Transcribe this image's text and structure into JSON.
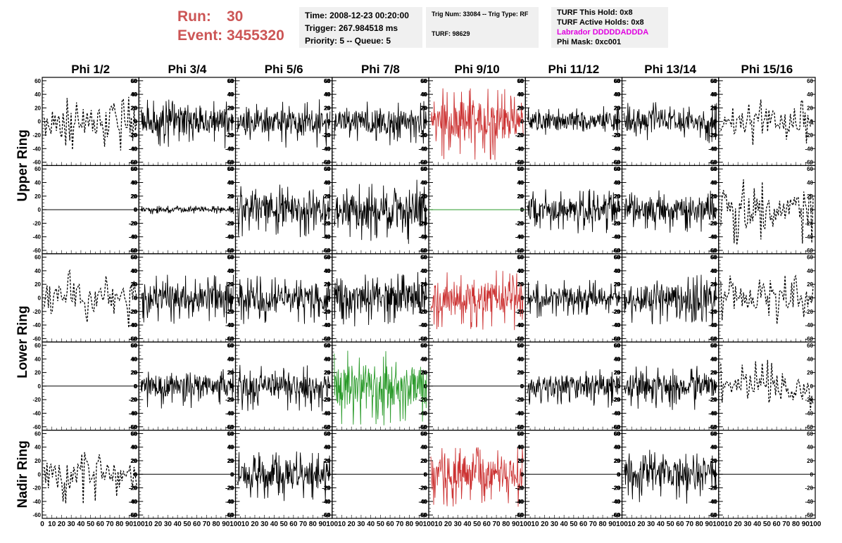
{
  "header": {
    "run_label": "Run:",
    "run_value": "30",
    "event_label": "Event:",
    "event_value": "3455320"
  },
  "info_time": {
    "time": "Time: 2008-12-23 00:20:00",
    "trigger": "Trigger: 267.984518 ms",
    "priority": "Priority: 5 -- Queue: 5"
  },
  "info_trig": {
    "trig": "Trig Num: 33084 -- Trig Type: RF",
    "turf": "TURF: 98629"
  },
  "info_turf": {
    "hold": "TURF This Hold: 0x8",
    "active": "TURF Active Holds: 0x8",
    "labrador": "Labrador DDDDDADDDA",
    "phimask": "Phi Mask: 0xc001"
  },
  "colors": {
    "header_red": "#cc5555",
    "labrador_magenta": "#e000e0",
    "trace_black": "#000000",
    "trace_red": "#cc3333",
    "trace_green": "#2a9a2a"
  },
  "chart_data": {
    "type": "line",
    "columns": [
      "Phi 1/2",
      "Phi 3/4",
      "Phi 5/6",
      "Phi 7/8",
      "Phi 9/10",
      "Phi 11/12",
      "Phi 13/14",
      "Phi 15/16"
    ],
    "rows": [
      "Upper Ring",
      "Lower Ring",
      "Nadir Ring"
    ],
    "ylim": [
      -65,
      65
    ],
    "xlim": [
      0,
      100
    ],
    "yticks": [
      "60",
      "40",
      "20",
      "0",
      "-20",
      "-40",
      "-60"
    ],
    "xticks_first": [
      "0",
      "10",
      "20",
      "30",
      "40",
      "50",
      "60",
      "70",
      "80",
      "90",
      "100"
    ],
    "xticks_rest": [
      "10",
      "20",
      "30",
      "40",
      "50",
      "60",
      "70",
      "80",
      "90",
      "100"
    ],
    "traces": [
      [
        {
          "style": "dashed",
          "amp": 20,
          "seed": 1
        },
        {
          "style": "solid",
          "amp": 18,
          "seed": 2
        },
        {
          "style": "solid",
          "amp": 18,
          "seed": 3
        },
        {
          "style": "solid",
          "amp": 16,
          "seed": 4
        },
        {
          "style": "red",
          "amp": 26,
          "seed": 5
        },
        {
          "style": "solid",
          "amp": 12,
          "seed": 6
        },
        {
          "style": "solid",
          "amp": 15,
          "seed": 7
        },
        {
          "style": "dashed",
          "amp": 18,
          "seed": 8
        }
      ],
      [
        {
          "style": "flat",
          "amp": 0,
          "seed": 9
        },
        {
          "style": "small",
          "amp": 3,
          "seed": 10
        },
        {
          "style": "solid",
          "amp": 20,
          "seed": 11
        },
        {
          "style": "solid",
          "amp": 24,
          "seed": 12
        },
        {
          "style": "greenflat",
          "amp": 0,
          "seed": 13
        },
        {
          "style": "solid",
          "amp": 16,
          "seed": 14
        },
        {
          "style": "solid",
          "amp": 16,
          "seed": 15
        },
        {
          "style": "dashed",
          "amp": 24,
          "seed": 16
        }
      ],
      [
        {
          "style": "dashed",
          "amp": 22,
          "seed": 17
        },
        {
          "style": "solid",
          "amp": 18,
          "seed": 18
        },
        {
          "style": "solid",
          "amp": 18,
          "seed": 19
        },
        {
          "style": "solid",
          "amp": 20,
          "seed": 20
        },
        {
          "style": "red",
          "amp": 22,
          "seed": 21
        },
        {
          "style": "solid",
          "amp": 14,
          "seed": 22
        },
        {
          "style": "solid",
          "amp": 18,
          "seed": 23
        },
        {
          "style": "dashed",
          "amp": 18,
          "seed": 24
        }
      ],
      [
        {
          "style": "flat",
          "amp": 0,
          "seed": 25
        },
        {
          "style": "solid",
          "amp": 15,
          "seed": 26
        },
        {
          "style": "solid",
          "amp": 17,
          "seed": 27
        },
        {
          "style": "green",
          "amp": 28,
          "seed": 28
        },
        {
          "style": "flat",
          "amp": 0,
          "seed": 29
        },
        {
          "style": "solid",
          "amp": 15,
          "seed": 30
        },
        {
          "style": "solid",
          "amp": 16,
          "seed": 31
        },
        {
          "style": "dashed",
          "amp": 22,
          "seed": 32
        }
      ],
      [
        {
          "style": "dashed",
          "amp": 20,
          "seed": 33
        },
        {
          "style": "flat",
          "amp": 0,
          "seed": 34
        },
        {
          "style": "solid",
          "amp": 18,
          "seed": 35
        },
        {
          "style": "flat",
          "amp": 0,
          "seed": 36
        },
        {
          "style": "red",
          "amp": 22,
          "seed": 37
        },
        {
          "style": "flat",
          "amp": 0,
          "seed": 38
        },
        {
          "style": "solid",
          "amp": 20,
          "seed": 39
        },
        {
          "style": "flat",
          "amp": 0,
          "seed": 40
        }
      ]
    ]
  }
}
